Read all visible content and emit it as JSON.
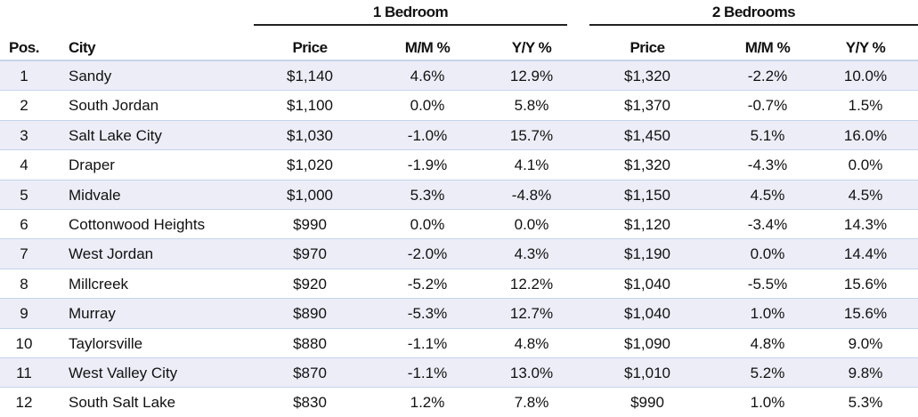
{
  "header_groups": [
    "1 Bedroom",
    "2 Bedrooms"
  ],
  "columns": [
    "Pos.",
    "City",
    "Price",
    "M/M %",
    "Y/Y %",
    "Price",
    "M/M %",
    "Y/Y %"
  ],
  "rows": [
    [
      "1",
      "Sandy",
      "$1,140",
      "4.6%",
      "12.9%",
      "$1,320",
      "-2.2%",
      "10.0%"
    ],
    [
      "2",
      "South Jordan",
      "$1,100",
      "0.0%",
      "5.8%",
      "$1,370",
      "-0.7%",
      "1.5%"
    ],
    [
      "3",
      "Salt Lake City",
      "$1,030",
      "-1.0%",
      "15.7%",
      "$1,450",
      "5.1%",
      "16.0%"
    ],
    [
      "4",
      "Draper",
      "$1,020",
      "-1.9%",
      "4.1%",
      "$1,320",
      "-4.3%",
      "0.0%"
    ],
    [
      "5",
      "Midvale",
      "$1,000",
      "5.3%",
      "-4.8%",
      "$1,150",
      "4.5%",
      "4.5%"
    ],
    [
      "6",
      "Cottonwood Heights",
      "$990",
      "0.0%",
      "0.0%",
      "$1,120",
      "-3.4%",
      "14.3%"
    ],
    [
      "7",
      "West Jordan",
      "$970",
      "-2.0%",
      "4.3%",
      "$1,190",
      "0.0%",
      "14.4%"
    ],
    [
      "8",
      "Millcreek",
      "$920",
      "-5.2%",
      "12.2%",
      "$1,040",
      "-5.5%",
      "15.6%"
    ],
    [
      "9",
      "Murray",
      "$890",
      "-5.3%",
      "12.7%",
      "$1,040",
      "1.0%",
      "15.6%"
    ],
    [
      "10",
      "Taylorsville",
      "$880",
      "-1.1%",
      "4.8%",
      "$1,090",
      "4.8%",
      "9.0%"
    ],
    [
      "11",
      "West Valley City",
      "$870",
      "-1.1%",
      "13.0%",
      "$1,010",
      "5.2%",
      "9.8%"
    ],
    [
      "12",
      "South Salt Lake",
      "$830",
      "1.2%",
      "7.8%",
      "$990",
      "1.0%",
      "5.3%"
    ]
  ]
}
